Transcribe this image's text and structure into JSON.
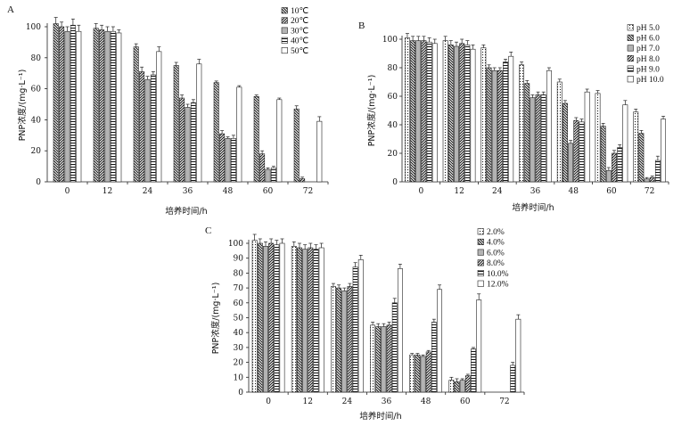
{
  "chart_data": [
    {
      "type": "bar",
      "panel_label": "A",
      "xlabel": "培养时间/h",
      "ylabel": "PNP浓度/(mg·L⁻¹)",
      "categories": [
        "0",
        "12",
        "24",
        "36",
        "48",
        "60",
        "72"
      ],
      "ylim": [
        0,
        100
      ],
      "yticks": [
        "0",
        "20",
        "40",
        "60",
        "80",
        "100"
      ],
      "legend_position": "top-right",
      "series": [
        {
          "name": "10℃",
          "values": [
            102,
            99,
            87,
            75,
            64,
            55,
            47
          ],
          "errors": [
            4,
            3,
            2,
            2,
            1,
            1,
            2
          ],
          "pattern": "back-diag"
        },
        {
          "name": "20℃",
          "values": [
            100,
            98,
            71,
            54,
            31,
            18,
            2
          ],
          "errors": [
            3,
            3,
            3,
            2,
            2,
            2,
            1
          ],
          "pattern": "fwd-diag"
        },
        {
          "name": "30℃",
          "values": [
            97,
            97,
            66,
            48,
            28,
            8,
            0
          ],
          "errors": [
            3,
            3,
            2,
            2,
            1,
            1,
            0
          ],
          "pattern": "gray"
        },
        {
          "name": "40℃",
          "values": [
            101,
            97,
            69,
            51,
            28,
            9,
            0
          ],
          "errors": [
            4,
            3,
            2,
            2,
            2,
            1,
            0
          ],
          "pattern": "horiz"
        },
        {
          "name": "50℃",
          "values": [
            97,
            96,
            84,
            76,
            61,
            53,
            39
          ],
          "errors": [
            4,
            2,
            3,
            3,
            1,
            1,
            3
          ],
          "pattern": "white"
        }
      ]
    },
    {
      "type": "bar",
      "panel_label": "B",
      "xlabel": "培养时间/h",
      "ylabel": "PNP浓度/(mg·L⁻¹)",
      "categories": [
        "0",
        "12",
        "24",
        "36",
        "48",
        "60",
        "72"
      ],
      "ylim": [
        0,
        100
      ],
      "yticks": [
        "0",
        "20",
        "40",
        "60",
        "80",
        "100"
      ],
      "legend_position": "top-right",
      "series": [
        {
          "name": "pH 5.0",
          "values": [
            101,
            99,
            94,
            82,
            70,
            62,
            49
          ],
          "errors": [
            3,
            3,
            2,
            2,
            2,
            2,
            2
          ],
          "pattern": "dots"
        },
        {
          "name": "pH 6.0",
          "values": [
            99,
            96,
            80,
            69,
            55,
            39,
            34
          ],
          "errors": [
            3,
            3,
            2,
            2,
            2,
            2,
            2
          ],
          "pattern": "back-diag"
        },
        {
          "name": "pH 7.0",
          "values": [
            99,
            95,
            78,
            59,
            27,
            8,
            2
          ],
          "errors": [
            3,
            3,
            2,
            2,
            2,
            2,
            1
          ],
          "pattern": "gray"
        },
        {
          "name": "pH 8.0",
          "values": [
            99,
            97,
            78,
            61,
            43,
            20,
            3
          ],
          "errors": [
            3,
            3,
            2,
            2,
            2,
            2,
            1
          ],
          "pattern": "fwd-diag"
        },
        {
          "name": "pH 9.0",
          "values": [
            98,
            96,
            84,
            61,
            42,
            24,
            15
          ],
          "errors": [
            3,
            3,
            2,
            2,
            2,
            2,
            3
          ],
          "pattern": "horiz"
        },
        {
          "name": "pH 10.0",
          "values": [
            97,
            93,
            88,
            78,
            63,
            54,
            44
          ],
          "errors": [
            3,
            3,
            3,
            2,
            2,
            3,
            2
          ],
          "pattern": "white"
        }
      ]
    },
    {
      "type": "bar",
      "panel_label": "C",
      "xlabel": "培养时间/h",
      "ylabel": "PNP浓度/(mg·L⁻¹)",
      "categories": [
        "0",
        "12",
        "24",
        "36",
        "48",
        "60",
        "72"
      ],
      "ylim": [
        0,
        100
      ],
      "yticks": [
        "0",
        "10",
        "20",
        "30",
        "40",
        "50",
        "60",
        "70",
        "80",
        "90",
        "100"
      ],
      "legend_position": "top-right",
      "series": [
        {
          "name": "2.0%",
          "values": [
            102,
            98,
            71,
            45,
            25,
            8,
            0
          ],
          "errors": [
            4,
            3,
            2,
            2,
            1,
            2,
            0
          ],
          "pattern": "dots"
        },
        {
          "name": "4.0%",
          "values": [
            100,
            97,
            70,
            44,
            25,
            7,
            0
          ],
          "errors": [
            3,
            3,
            2,
            2,
            1,
            2,
            0
          ],
          "pattern": "back-diag"
        },
        {
          "name": "6.0%",
          "values": [
            98,
            96,
            68,
            44,
            24,
            8,
            0
          ],
          "errors": [
            3,
            3,
            2,
            2,
            1,
            1,
            0
          ],
          "pattern": "gray"
        },
        {
          "name": "8.0%",
          "values": [
            100,
            97,
            71,
            45,
            27,
            11,
            0
          ],
          "errors": [
            3,
            3,
            2,
            2,
            1,
            1,
            0
          ],
          "pattern": "fwd-diag"
        },
        {
          "name": "10.0%",
          "values": [
            99,
            96,
            84,
            60,
            47,
            29,
            18
          ],
          "errors": [
            3,
            3,
            3,
            3,
            2,
            1,
            2
          ],
          "pattern": "horiz"
        },
        {
          "name": "12.0%",
          "values": [
            100,
            97,
            89,
            83,
            69,
            62,
            49
          ],
          "errors": [
            3,
            3,
            3,
            3,
            3,
            4,
            3
          ],
          "pattern": "white"
        }
      ]
    }
  ]
}
